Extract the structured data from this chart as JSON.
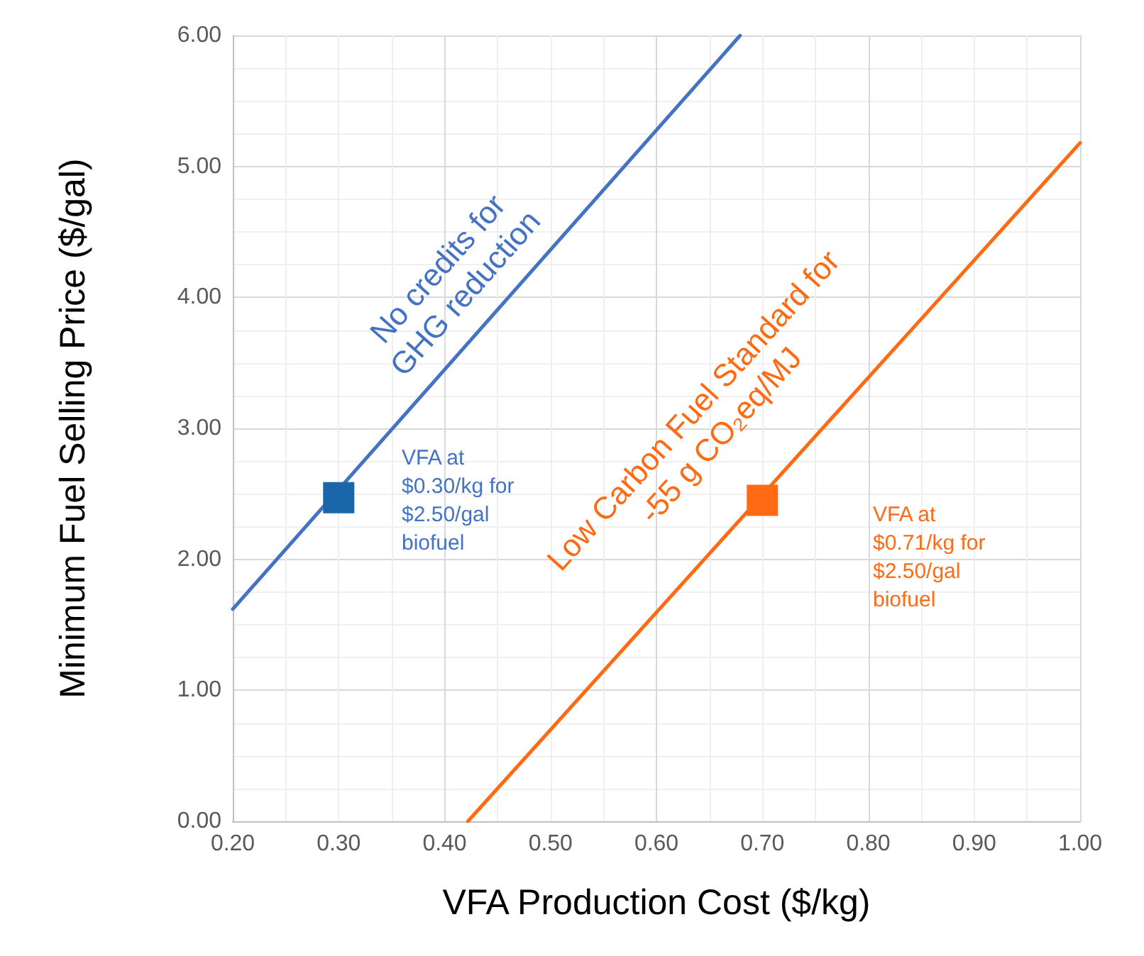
{
  "chart_data": {
    "type": "line",
    "xlabel": "VFA Production Cost ($/kg)",
    "ylabel": "Minimum Fuel Selling Price ($/gal)",
    "xlim": [
      0.2,
      1.0
    ],
    "ylim": [
      0,
      6
    ],
    "xticks": [
      {
        "value": 0.2,
        "label": "0.20"
      },
      {
        "value": 0.3,
        "label": "0.30"
      },
      {
        "value": 0.4,
        "label": "0.40"
      },
      {
        "value": 0.5,
        "label": "0.50"
      },
      {
        "value": 0.6,
        "label": "0.60"
      },
      {
        "value": 0.7,
        "label": "0.70"
      },
      {
        "value": 0.8,
        "label": "0.80"
      },
      {
        "value": 0.9,
        "label": "0.90"
      },
      {
        "value": 1.0,
        "label": "1.00"
      }
    ],
    "yticks": [
      {
        "value": 0,
        "label": "0.00"
      },
      {
        "value": 1,
        "label": "1.00"
      },
      {
        "value": 2,
        "label": "2.00"
      },
      {
        "value": 3,
        "label": "3.00"
      },
      {
        "value": 4,
        "label": "4.00"
      },
      {
        "value": 5,
        "label": "5.00"
      },
      {
        "value": 6,
        "label": "6.00"
      }
    ],
    "grid": true,
    "marker": "none",
    "line_style": "solid",
    "series": [
      {
        "color": "#4472c4",
        "x": [
          0.2,
          0.679
        ],
        "values": [
          1.62,
          6.0
        ]
      },
      {
        "color": "#ff6a13",
        "x": [
          0.422,
          1.0
        ],
        "values": [
          0,
          5.18
        ]
      },
      {
        "type": "scatter",
        "marker": "square",
        "color": "#1a66a8",
        "x": [
          0.3
        ],
        "values": [
          2.47
        ]
      },
      {
        "type": "scatter",
        "marker": "square",
        "color": "#ff6a13",
        "x": [
          0.7
        ],
        "values": [
          2.45
        ]
      }
    ],
    "annotations": [
      "No credits for\nGHG reduction",
      "VFA at\n$0.30/kg for\n$2.50/gal\nbiofuel",
      "Low Carbon Fuel Standard for\n-55 g CO₂eq/MJ",
      "VFA at\n$0.71/kg for\n$2.50/gal\nbiofuel"
    ]
  }
}
